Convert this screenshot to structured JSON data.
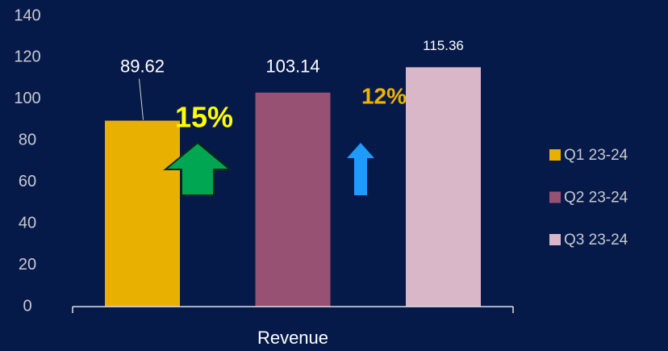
{
  "chart_data": {
    "type": "bar",
    "categories": [
      "Revenue"
    ],
    "series": [
      {
        "name": "Q1 23-24",
        "color": "#e8b000",
        "values": [
          89.62
        ]
      },
      {
        "name": "Q2 23-24",
        "color": "#975273",
        "values": [
          103.14
        ]
      },
      {
        "name": "Q3 23-24",
        "color": "#d9b7c9",
        "values": [
          115.36
        ]
      }
    ],
    "ylim": [
      0,
      140
    ],
    "yticks": [
      0,
      20,
      40,
      60,
      80,
      100,
      120,
      140
    ],
    "grid": false,
    "legend": "right",
    "annotations": [
      "15%",
      "12%"
    ]
  }
}
